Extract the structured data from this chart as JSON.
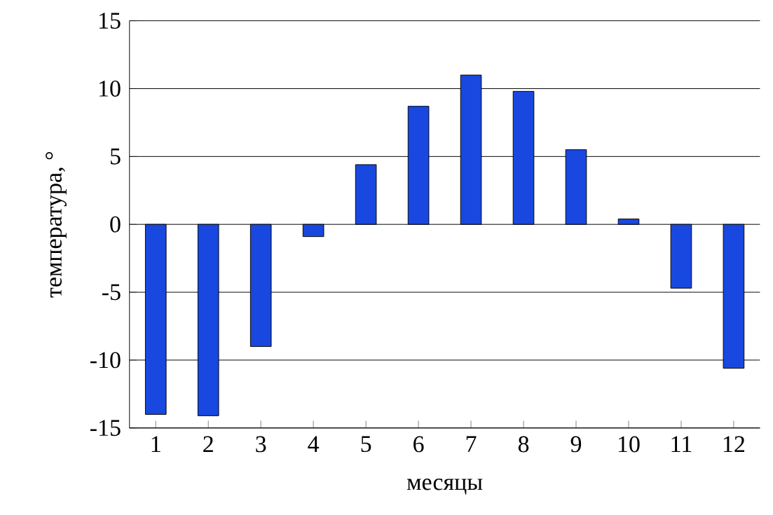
{
  "chart_data": {
    "type": "bar",
    "xlabel": "месяцы",
    "ylabel": "температура, °",
    "categories": [
      "1",
      "2",
      "3",
      "4",
      "5",
      "6",
      "7",
      "8",
      "9",
      "10",
      "11",
      "12"
    ],
    "values": [
      -14,
      -14.1,
      -9,
      -0.9,
      4.4,
      8.7,
      11,
      9.8,
      5.5,
      0.4,
      -4.7,
      -10.6
    ],
    "color": "#1848e0",
    "ylim": [
      -15,
      15
    ],
    "yticks": [
      -15,
      -10,
      -5,
      0,
      5,
      10,
      15
    ],
    "grid": "y"
  }
}
